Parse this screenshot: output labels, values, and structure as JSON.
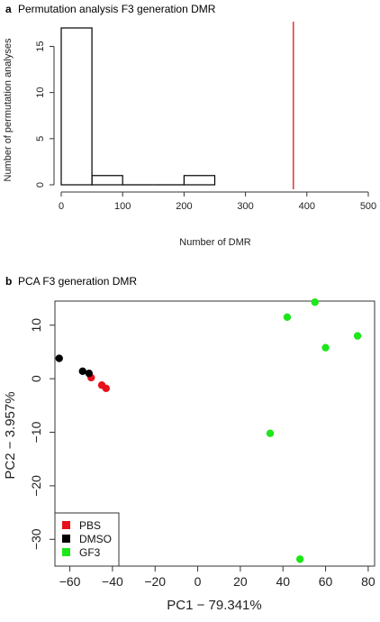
{
  "chart_data": [
    {
      "type": "bar",
      "panel_label": "a",
      "title": "Permutation analysis F3 generation DMR",
      "xlabel": "Number of DMR",
      "ylabel": "Number of permutation analyses",
      "bins": [
        {
          "start": 0,
          "end": 50,
          "count": 17
        },
        {
          "start": 50,
          "end": 100,
          "count": 1
        },
        {
          "start": 100,
          "end": 150,
          "count": 0
        },
        {
          "start": 150,
          "end": 200,
          "count": 0
        },
        {
          "start": 200,
          "end": 250,
          "count": 1
        }
      ],
      "xlim": [
        0,
        500
      ],
      "ylim": [
        0,
        17
      ],
      "xticks": [
        "0",
        "100",
        "200",
        "300",
        "400",
        "500"
      ],
      "yticks": [
        "0",
        "5",
        "10",
        "15"
      ],
      "reference_line": {
        "x": 378,
        "color": "#e8101a"
      }
    },
    {
      "type": "scatter",
      "panel_label": "b",
      "title": "PCA F3 generation DMR",
      "xlabel": "PC1 − 79.341%",
      "ylabel": "PC2 − 3.957%",
      "xlim": [
        -67,
        83
      ],
      "ylim": [
        -35,
        14.5
      ],
      "xticks": [
        "−60",
        "−40",
        "−20",
        "0",
        "20",
        "40",
        "60",
        "80"
      ],
      "yticks": [
        "−30",
        "−20",
        "−10",
        "0",
        "10"
      ],
      "legend_position": "bottom-left",
      "series": [
        {
          "name": "PBS",
          "color": "#e8101a",
          "points": [
            [
              -50,
              0.2
            ],
            [
              -45,
              -1.2
            ],
            [
              -43,
              -1.8
            ]
          ]
        },
        {
          "name": "DMSO",
          "color": "#000000",
          "points": [
            [
              -65,
              3.8
            ],
            [
              -54,
              1.4
            ],
            [
              -51,
              1.0
            ]
          ]
        },
        {
          "name": "GF3",
          "color": "#1ee61a",
          "points": [
            [
              42,
              11.5
            ],
            [
              55,
              14.3
            ],
            [
              60,
              5.8
            ],
            [
              75,
              8.0
            ],
            [
              34,
              -10.2
            ],
            [
              48,
              -33.7
            ]
          ]
        }
      ]
    }
  ]
}
